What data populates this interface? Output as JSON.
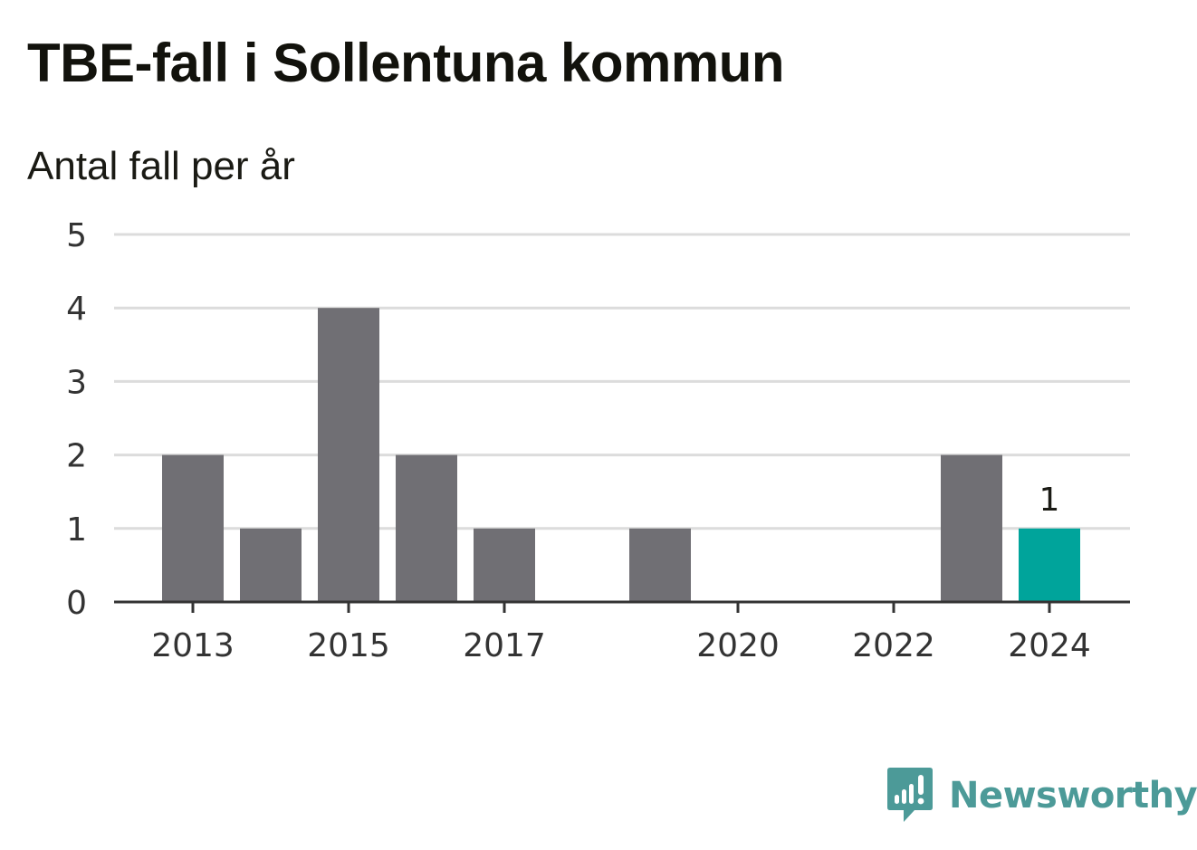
{
  "title": "TBE-fall i Sollentuna kommun",
  "subtitle": "Antal fall per år",
  "logo": {
    "name": "Newsworthy",
    "icon": "bar-chart-speech-bubble-icon",
    "color": "#4c9a98"
  },
  "chart_data": {
    "type": "bar",
    "x": [
      2013,
      2014,
      2015,
      2016,
      2017,
      2018,
      2019,
      2020,
      2021,
      2022,
      2023,
      2024
    ],
    "values": [
      2,
      1,
      4,
      2,
      1,
      0,
      1,
      0,
      0,
      0,
      2,
      1
    ],
    "x_tick_labels": [
      "2013",
      "2015",
      "2017",
      "2020",
      "2022",
      "2024"
    ],
    "y_ticks": [
      0,
      1,
      2,
      3,
      4,
      5
    ],
    "ylim": [
      0,
      5
    ],
    "highlight": {
      "x": 2024,
      "label": "1"
    },
    "colors": {
      "bar": "#706f74",
      "highlight": "#00a49b",
      "grid": "#dcdcdc",
      "axis": "#333333"
    },
    "grid": true,
    "legend": "none",
    "xlabel": "",
    "ylabel": ""
  }
}
